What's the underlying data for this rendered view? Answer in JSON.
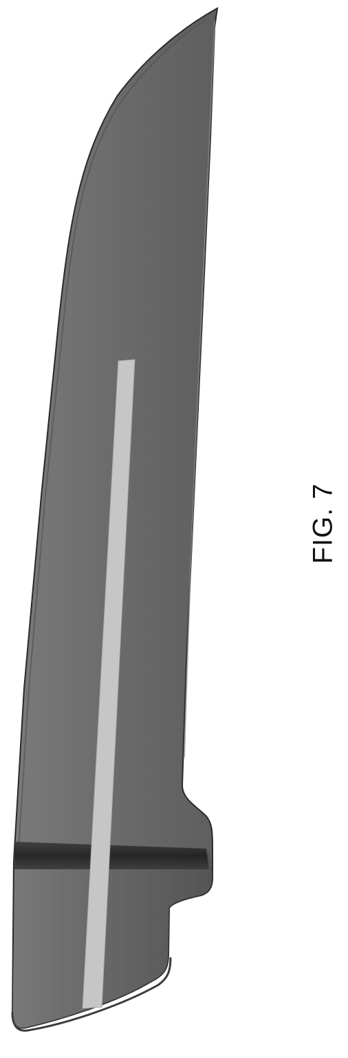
{
  "figure": {
    "label": "FIG. 7"
  },
  "colors": {
    "blade": "#6b6b6b",
    "blade_edge": "#4a4a4a",
    "handle": "#5f5f5f",
    "guard_band": "#2b2b2b",
    "insert_strip": "#c9c9c9",
    "outline": "#1e1e1e"
  }
}
